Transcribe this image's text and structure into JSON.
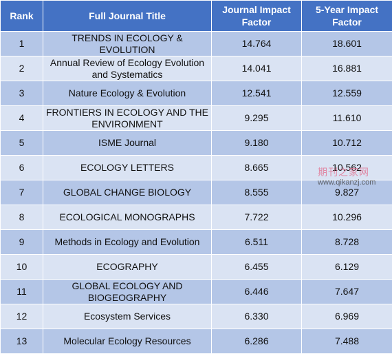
{
  "table": {
    "headers": {
      "rank": "Rank",
      "title": "Full Journal Title",
      "jif": "Journal Impact Factor",
      "five_year": "5-Year Impact Factor"
    },
    "rows": [
      {
        "rank": "1",
        "title": "TRENDS IN ECOLOGY & EVOLUTION",
        "jif": "14.764",
        "five_year": "18.601"
      },
      {
        "rank": "2",
        "title": "Annual Review of Ecology Evolution and Systematics",
        "jif": "14.041",
        "five_year": "16.881"
      },
      {
        "rank": "3",
        "title": "Nature Ecology & Evolution",
        "jif": "12.541",
        "five_year": "12.559"
      },
      {
        "rank": "4",
        "title": "FRONTIERS IN ECOLOGY AND THE ENVIRONMENT",
        "jif": "9.295",
        "five_year": "11.610"
      },
      {
        "rank": "5",
        "title": "ISME Journal",
        "jif": "9.180",
        "five_year": "10.712"
      },
      {
        "rank": "6",
        "title": "ECOLOGY LETTERS",
        "jif": "8.665",
        "five_year": "10.562"
      },
      {
        "rank": "7",
        "title": "GLOBAL CHANGE BIOLOGY",
        "jif": "8.555",
        "five_year": "9.827"
      },
      {
        "rank": "8",
        "title": "ECOLOGICAL MONOGRAPHS",
        "jif": "7.722",
        "five_year": "10.296"
      },
      {
        "rank": "9",
        "title": "Methods in Ecology and Evolution",
        "jif": "6.511",
        "five_year": "8.728"
      },
      {
        "rank": "10",
        "title": "ECOGRAPHY",
        "jif": "6.455",
        "five_year": "6.129"
      },
      {
        "rank": "11",
        "title": "GLOBAL ECOLOGY AND BIOGEOGRAPHY",
        "jif": "6.446",
        "five_year": "7.647"
      },
      {
        "rank": "12",
        "title": "Ecosystem Services",
        "jif": "6.330",
        "five_year": "6.969"
      },
      {
        "rank": "13",
        "title": "Molecular Ecology Resources",
        "jif": "6.286",
        "five_year": "7.488"
      }
    ]
  },
  "watermark": {
    "name": "期刊之家网",
    "url": "www.qikanzj.com"
  },
  "colors": {
    "header_bg": "#4472c4",
    "row_odd": "#b4c6e7",
    "row_even": "#dae3f3"
  }
}
